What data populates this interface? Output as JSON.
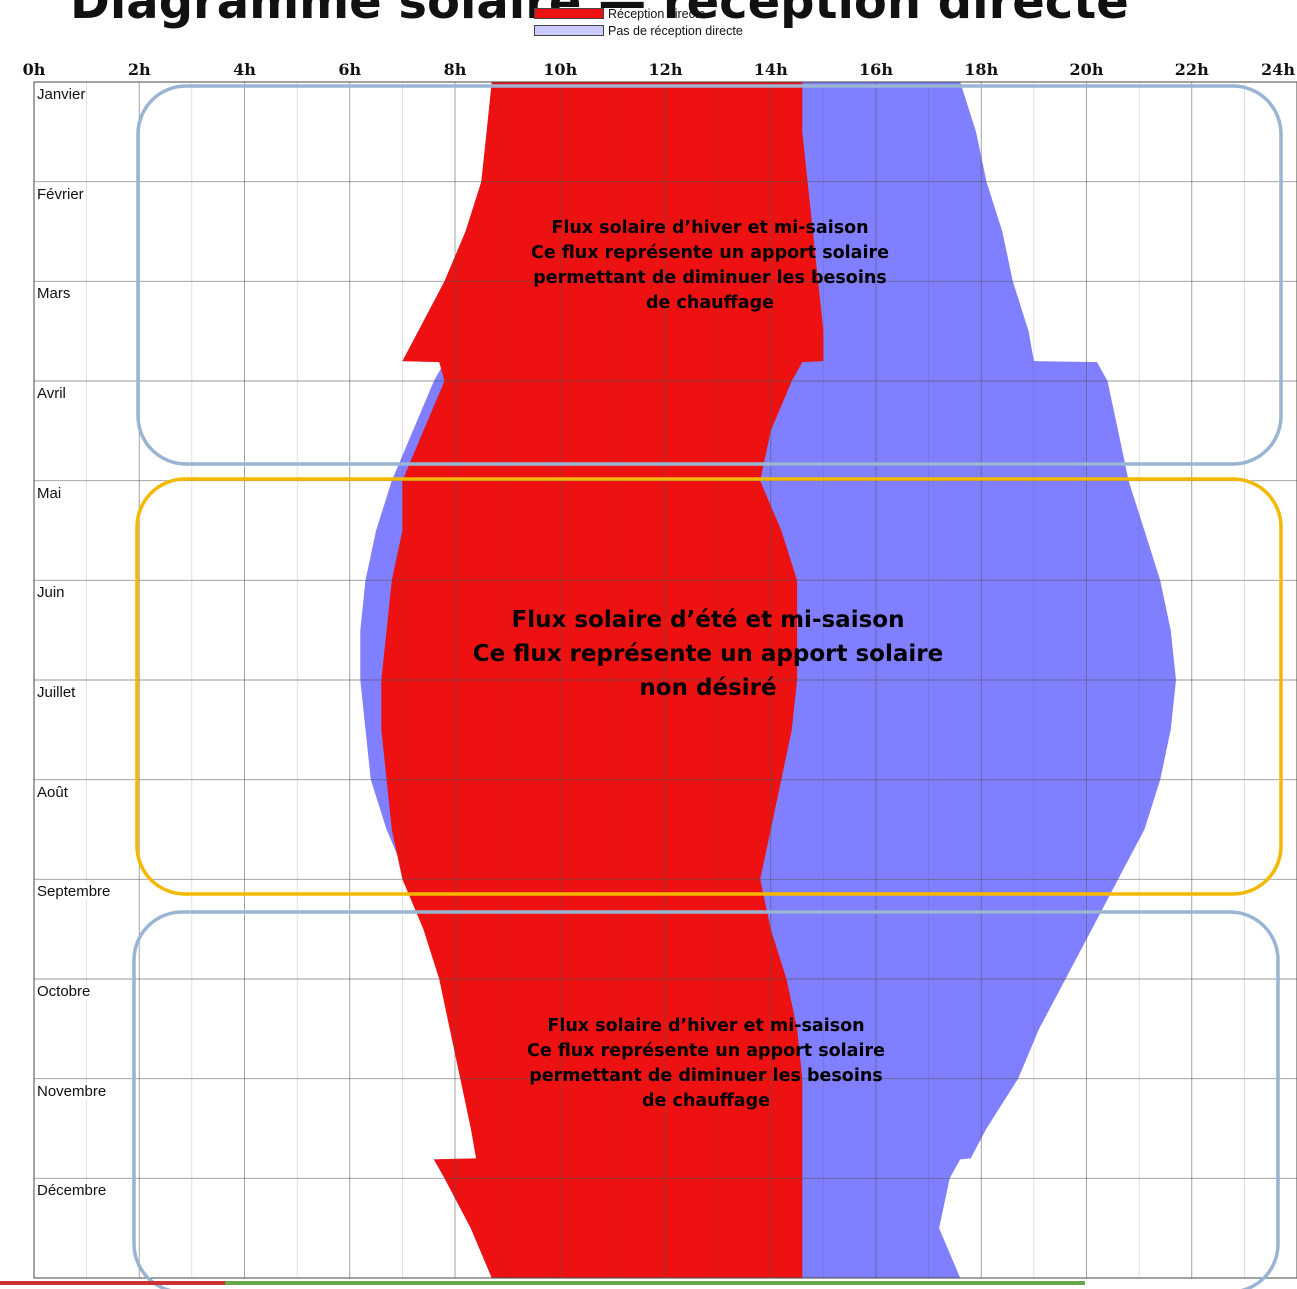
{
  "page_title_cut": "Diagramme solaire — réception directe",
  "colors": {
    "direct": "#ee1111",
    "indirect": "#7f7fff",
    "winter_box": "#9ab4d4",
    "summer_box": "#f5b800",
    "grid": "#555555",
    "bottom_left": "#cc3333",
    "bottom_right": "#6aa84f"
  },
  "legend": {
    "direct": "Réception directe",
    "indirect": "Pas de réception directe"
  },
  "chart_data": {
    "type": "area",
    "hour_ticks": [
      "0h",
      "2h",
      "4h",
      "6h",
      "8h",
      "10h",
      "12h",
      "14h",
      "16h",
      "18h",
      "20h",
      "22h",
      "24h"
    ],
    "months": [
      "Janvier",
      "Février",
      "Mars",
      "Avril",
      "Mai",
      "Juin",
      "Juillet",
      "Août",
      "Septembre",
      "Octobre",
      "Novembre",
      "Décembre"
    ],
    "xlim": [
      0,
      24
    ],
    "grid": true,
    "legend_position": "top-center",
    "series": [
      {
        "name": "Réception directe",
        "month_pos": [
          0,
          0.5,
          1,
          1.5,
          2,
          2.5,
          2.8,
          2.81,
          3,
          3.5,
          4,
          4.5,
          5,
          5.5,
          6,
          6.5,
          7,
          7.5,
          8,
          8.5,
          9,
          9.5,
          10,
          10.5,
          10.8,
          10.81,
          11,
          11.5,
          12
        ],
        "start_h": [
          8.7,
          8.6,
          8.5,
          8.2,
          7.8,
          7.3,
          7.0,
          7.7,
          7.8,
          7.4,
          7.0,
          7.0,
          6.8,
          6.7,
          6.6,
          6.6,
          6.7,
          6.8,
          7.0,
          7.4,
          7.7,
          7.9,
          8.1,
          8.3,
          8.4,
          7.6,
          7.8,
          8.3,
          8.7
        ],
        "end_h": [
          14.6,
          14.6,
          14.7,
          14.8,
          14.9,
          15.0,
          15.0,
          14.6,
          14.4,
          14.0,
          13.8,
          14.2,
          14.5,
          14.5,
          14.5,
          14.4,
          14.2,
          14.0,
          13.8,
          14.0,
          14.3,
          14.5,
          14.6,
          14.6,
          14.6,
          14.6,
          14.6,
          14.6,
          14.6
        ]
      },
      {
        "name": "Pas de réception directe",
        "month_pos": [
          0,
          0.5,
          1,
          1.5,
          2,
          2.5,
          2.8,
          2.81,
          3,
          3.5,
          4,
          4.5,
          5,
          5.5,
          6,
          6.5,
          7,
          7.5,
          8,
          8.5,
          9,
          9.5,
          10,
          10.5,
          10.8,
          10.81,
          11,
          11.5,
          12
        ],
        "start_h": [
          8.7,
          8.6,
          8.5,
          8.2,
          7.8,
          7.3,
          7.0,
          7.8,
          7.6,
          7.2,
          6.8,
          6.5,
          6.3,
          6.2,
          6.2,
          6.3,
          6.4,
          6.7,
          7.1,
          7.5,
          7.8,
          8.0,
          8.2,
          8.4,
          8.4,
          7.6,
          7.8,
          8.3,
          8.7
        ],
        "end_h": [
          17.6,
          17.9,
          18.1,
          18.4,
          18.6,
          18.9,
          19.0,
          20.2,
          20.4,
          20.6,
          20.8,
          21.1,
          21.4,
          21.6,
          21.7,
          21.6,
          21.4,
          21.1,
          20.6,
          20.1,
          19.6,
          19.1,
          18.7,
          18.1,
          17.8,
          17.6,
          17.4,
          17.2,
          17.6
        ]
      }
    ]
  },
  "annotations": {
    "winter_top": {
      "line1": "Flux solaire d’hiver et mi-saison",
      "line2": "Ce flux représente un apport solaire",
      "line3": "permettant de diminuer les besoins",
      "line4": "de chauffage"
    },
    "summer": {
      "line1": "Flux solaire d’été et mi-saison",
      "line2": "Ce flux représente un apport solaire",
      "line3": "non désiré"
    },
    "winter_bottom": {
      "line1": "Flux solaire d’hiver et mi-saison",
      "line2": "Ce flux représente un apport solaire",
      "line3": "permettant de diminuer les besoins",
      "line4": "de chauffage"
    }
  }
}
